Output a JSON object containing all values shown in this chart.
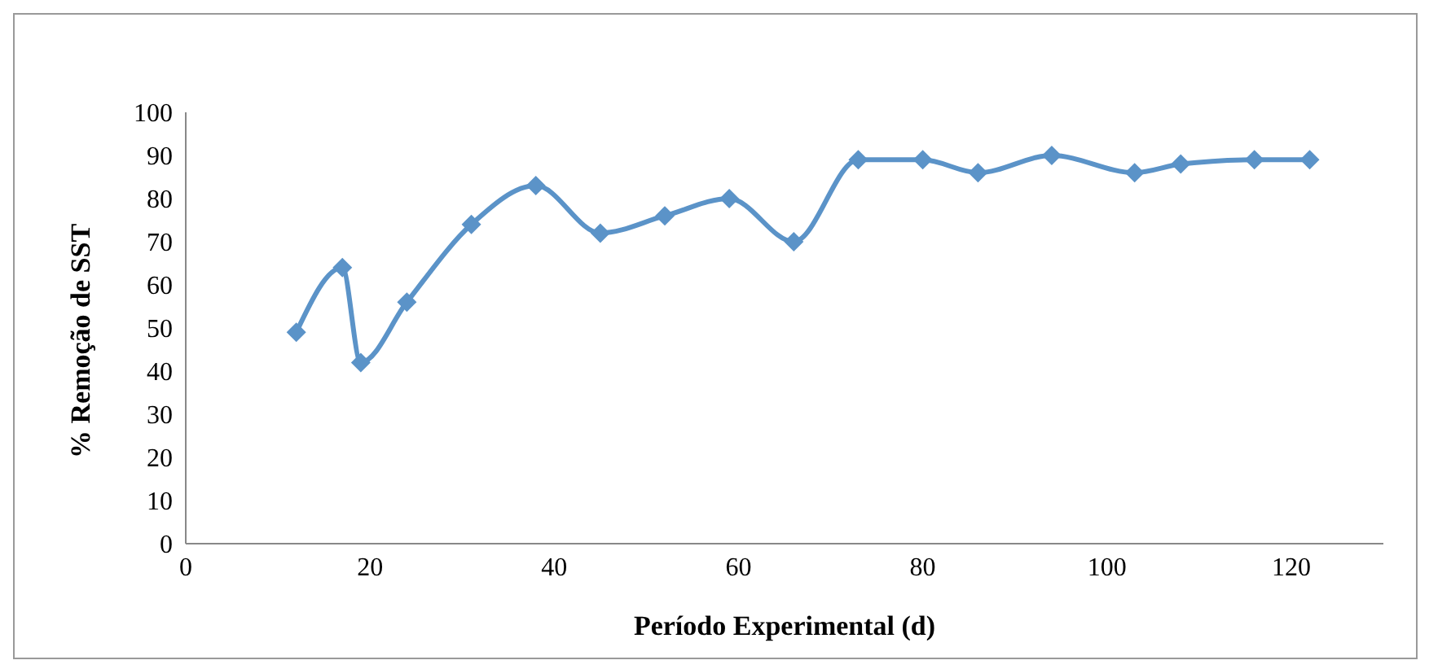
{
  "chart_data": {
    "type": "line",
    "xlabel": "Período Experimental (d)",
    "ylabel": "%  Remoção de SST",
    "x": [
      12,
      17,
      19,
      24,
      31,
      38,
      45,
      52,
      59,
      66,
      73,
      80,
      86,
      94,
      103,
      108,
      116,
      122
    ],
    "series": [
      {
        "color": "#5b93c8",
        "values": [
          49,
          64,
          42,
          56,
          74,
          83,
          72,
          76,
          80,
          70,
          89,
          89,
          86,
          90,
          86,
          88,
          89,
          89
        ]
      }
    ],
    "xlim": [
      0,
      130
    ],
    "xticks": [
      0,
      20,
      40,
      60,
      80,
      100,
      120
    ],
    "ylim": [
      0,
      100
    ],
    "yticks": [
      0,
      10,
      20,
      30,
      40,
      50,
      60,
      70,
      80,
      90,
      100
    ],
    "grid": false,
    "legend": false,
    "marker": "diamond",
    "line_style": "solid"
  }
}
